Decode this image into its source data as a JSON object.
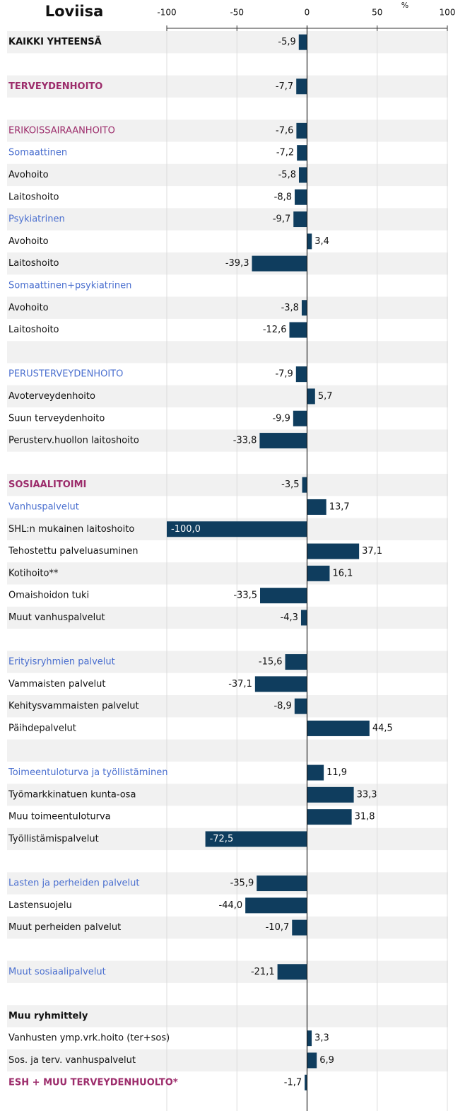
{
  "chart_data": {
    "type": "barh",
    "title": "Loviisa",
    "axis_unit": "%",
    "xlim": [
      -100,
      100
    ],
    "xticks": [
      -100,
      -50,
      0,
      50,
      100
    ],
    "grid": true,
    "color": "#0f3d5e",
    "band_color": "#f1f1f1",
    "categories": [
      "KAIKKI YHTEENSÄ",
      null,
      "TERVEYDENHOITO",
      null,
      "ERIKOISSAIRAANHOITO",
      "Somaattinen",
      "Avohoito",
      "Laitoshoito",
      "Psykiatrinen",
      "Avohoito",
      "Laitoshoito",
      "Somaattinen+psykiatrinen",
      "Avohoito",
      "Laitoshoito",
      null,
      "PERUSTERVEYDENHOITO",
      "Avoterveydenhoito",
      "Suun terveydenhoito",
      "Perusterv.huollon laitoshoito",
      null,
      "SOSIAALITOIMI",
      "Vanhuspalvelut",
      "SHL:n mukainen laitoshoito",
      "Tehostettu palveluasuminen",
      "Kotihoito**",
      "Omaishoidon tuki",
      "Muut vanhuspalvelut",
      null,
      "Erityisryhmien palvelut",
      "Vammaisten palvelut",
      "Kehitysvammaisten palvelut",
      "Päihdepalvelut",
      null,
      "Toimeentuloturva ja työllistäminen",
      "Työmarkkinatuen kunta-osa",
      "Muu toimeentuloturva",
      "Työllistämispalvelut",
      null,
      "Lasten ja perheiden palvelut",
      "Lastensuojelu",
      "Muut perheiden palvelut",
      null,
      "Muut sosiaalipalvelut",
      null,
      "Muu ryhmittely",
      "Vanhusten ymp.vrk.hoito (ter+sos)",
      "Sos. ja terv. vanhuspalvelut",
      "ESH + MUU TERVEYDENHUOLTO*"
    ],
    "values": [
      -5.9,
      null,
      -7.7,
      null,
      -7.6,
      -7.2,
      -5.8,
      -8.8,
      -9.7,
      3.4,
      -39.3,
      null,
      -3.8,
      -12.6,
      null,
      -7.9,
      5.7,
      -9.9,
      -33.8,
      null,
      -3.5,
      13.7,
      -100.0,
      37.1,
      16.1,
      -33.5,
      -4.3,
      null,
      -15.6,
      -37.1,
      -8.9,
      44.5,
      null,
      11.9,
      33.3,
      31.8,
      -72.5,
      null,
      -35.9,
      -44.0,
      -10.7,
      null,
      -21.1,
      null,
      null,
      3.3,
      6.9,
      -1.7
    ],
    "value_labels": [
      "-5,9",
      null,
      "-7,7",
      null,
      "-7,6",
      "-7,2",
      "-5,8",
      "-8,8",
      "-9,7",
      "3,4",
      "-39,3",
      null,
      "-3,8",
      "-12,6",
      null,
      "-7,9",
      "5,7",
      "-9,9",
      "-33,8",
      null,
      "-3,5",
      "13,7",
      "-100,0",
      "37,1",
      "16,1",
      "-33,5",
      "-4,3",
      null,
      "-15,6",
      "-37,1",
      "-8,9",
      "44,5",
      null,
      "11,9",
      "33,3",
      "31,8",
      "-72,5",
      null,
      "-35,9",
      "-44,0",
      "-10,7",
      null,
      "-21,1",
      null,
      null,
      "3,3",
      "6,9",
      "-1,7"
    ],
    "label_colors": [
      "#111111",
      null,
      "#9c2c6b",
      null,
      "#9c2c6b",
      "#4a6fcf",
      "#111111",
      "#111111",
      "#4a6fcf",
      "#111111",
      "#111111",
      "#4a6fcf",
      "#111111",
      "#111111",
      null,
      "#4a6fcf",
      "#111111",
      "#111111",
      "#111111",
      null,
      "#9c2c6b",
      "#4a6fcf",
      "#111111",
      "#111111",
      "#111111",
      "#111111",
      "#111111",
      null,
      "#4a6fcf",
      "#111111",
      "#111111",
      "#111111",
      null,
      "#4a6fcf",
      "#111111",
      "#111111",
      "#111111",
      null,
      "#4a6fcf",
      "#111111",
      "#111111",
      null,
      "#4a6fcf",
      null,
      "#111111",
      "#111111",
      "#111111",
      "#9c2c6b"
    ],
    "label_bold": [
      true,
      false,
      true,
      false,
      false,
      false,
      false,
      false,
      false,
      false,
      false,
      false,
      false,
      false,
      false,
      false,
      false,
      false,
      false,
      false,
      true,
      false,
      false,
      false,
      false,
      false,
      false,
      false,
      false,
      false,
      false,
      false,
      false,
      false,
      false,
      false,
      false,
      false,
      false,
      false,
      false,
      false,
      false,
      false,
      true,
      false,
      false,
      true
    ]
  }
}
